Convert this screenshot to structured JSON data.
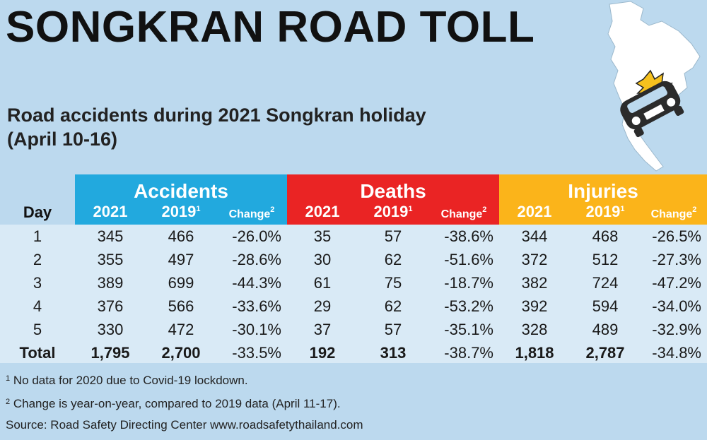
{
  "title": "SONGKRAN ROAD TOLL",
  "subtitle_line1": "Road accidents during 2021 Songkran holiday",
  "subtitle_line2": "(April 10-16)",
  "table": {
    "day_header": "Day",
    "groups": [
      {
        "name": "Accidents",
        "color": "#22a9de"
      },
      {
        "name": "Deaths",
        "color": "#ea2424"
      },
      {
        "name": "Injuries",
        "color": "#fbb41a"
      }
    ],
    "col_2021": "2021",
    "col_2019": "2019",
    "col_2019_sup": "1",
    "col_change": "Change",
    "col_change_sup": "2",
    "rows": [
      {
        "day": "1",
        "cells": [
          "345",
          "466",
          "-26.0%",
          "35",
          "57",
          "-38.6%",
          "344",
          "468",
          "-26.5%"
        ]
      },
      {
        "day": "2",
        "cells": [
          "355",
          "497",
          "-28.6%",
          "30",
          "62",
          "-51.6%",
          "372",
          "512",
          "-27.3%"
        ]
      },
      {
        "day": "3",
        "cells": [
          "389",
          "699",
          "-44.3%",
          "61",
          "75",
          "-18.7%",
          "382",
          "724",
          "-47.2%"
        ]
      },
      {
        "day": "4",
        "cells": [
          "376",
          "566",
          "-33.6%",
          "29",
          "62",
          "-53.2%",
          "392",
          "594",
          "-34.0%"
        ]
      },
      {
        "day": "5",
        "cells": [
          "330",
          "472",
          "-30.1%",
          "37",
          "57",
          "-35.1%",
          "328",
          "489",
          "-32.9%"
        ]
      },
      {
        "day": "Total",
        "cells": [
          "1,795",
          "2,700",
          "-33.5%",
          "192",
          "313",
          "-38.7%",
          "1,818",
          "2,787",
          "-34.8%"
        ]
      }
    ]
  },
  "footnotes": [
    {
      "sup": "1",
      "text": "No data for 2020 due to Covid-19 lockdown."
    },
    {
      "sup": "2",
      "text": "Change is year-on-year, compared to 2019 data (April 11-17)."
    },
    {
      "sup": "",
      "text": "Source: Road Safety Directing Center www.roadsafetythailand.com"
    }
  ]
}
